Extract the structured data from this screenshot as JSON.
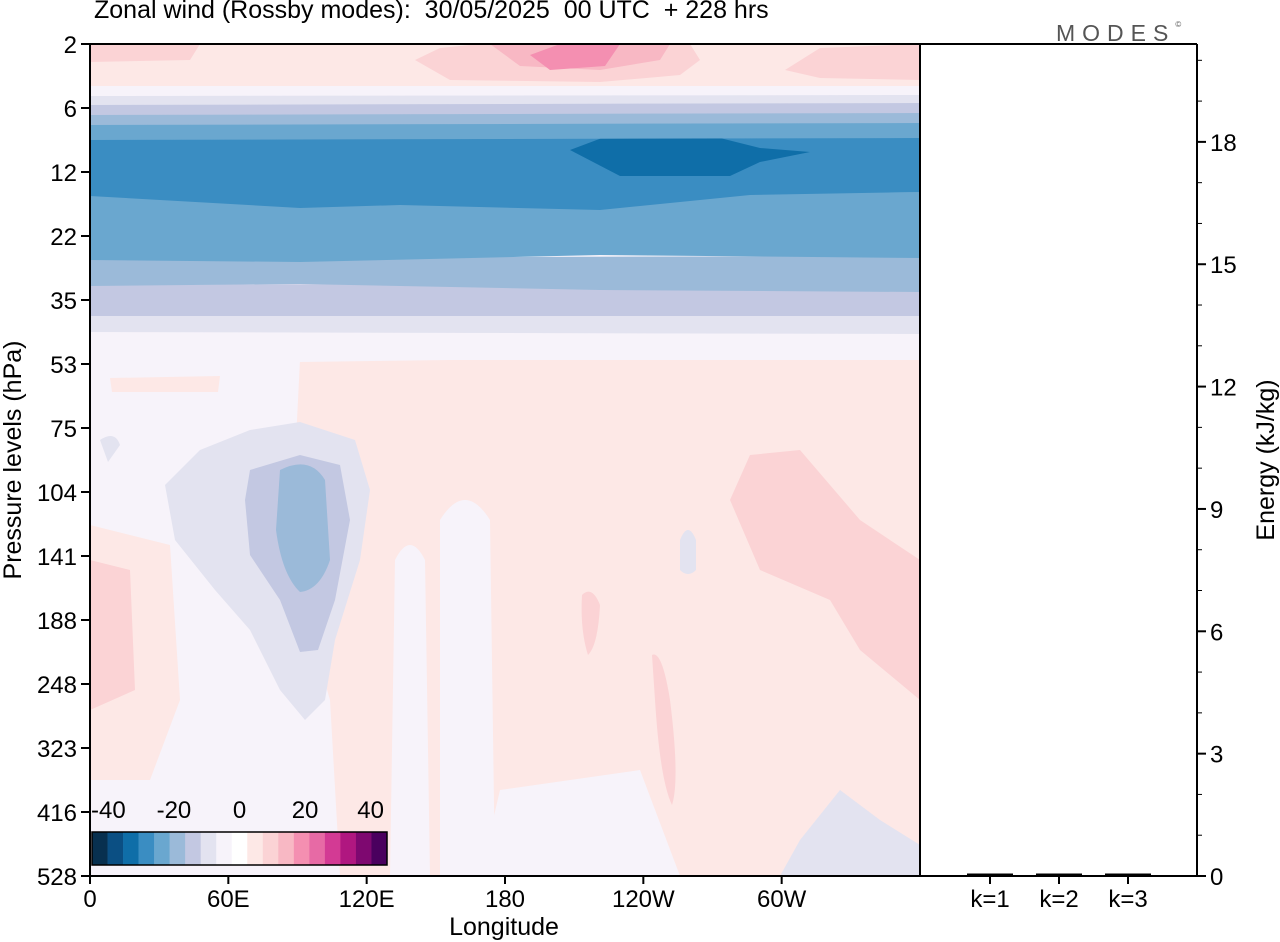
{
  "title": "Zonal wind (Rossby modes):  30/05/2025  00 UTC  + 228 hrs",
  "logo": "MODES",
  "logo_mark": "©",
  "chart_data": [
    {
      "type": "heatmap",
      "title": "Zonal wind (Rossby modes):  30/05/2025  00 UTC  + 228 hrs",
      "xlabel": "Longitude",
      "ylabel": "Pressure levels (hPa)",
      "x_ticks": [
        "0",
        "60E",
        "120E",
        "180",
        "120W",
        "60W"
      ],
      "x_tick_degrees": [
        0,
        60,
        120,
        180,
        240,
        300
      ],
      "x_range_degrees": [
        0,
        360
      ],
      "y_ticks": [
        "2",
        "6",
        "12",
        "22",
        "35",
        "53",
        "75",
        "104",
        "141",
        "188",
        "248",
        "323",
        "416",
        "528"
      ],
      "y_scale": "model levels, top to bottom",
      "colorbar": {
        "tick_labels": [
          "-40",
          "-20",
          "0",
          "20",
          "40"
        ],
        "range": [
          -45,
          45
        ],
        "bins": [
          -45,
          -40,
          -35,
          -30,
          -25,
          -20,
          -15,
          -10,
          -5,
          0,
          5,
          10,
          15,
          20,
          25,
          30,
          35,
          40,
          45
        ],
        "colors": [
          "#08304f",
          "#0b4f83",
          "#0f6ea8",
          "#3a8dc2",
          "#6aa7cf",
          "#9bbad9",
          "#c3c8e2",
          "#e3e3f0",
          "#f7f3fa",
          "#ffffff",
          "#fde8e6",
          "#fbd3d5",
          "#f8b8c4",
          "#f48fb1",
          "#e76aa5",
          "#d33a94",
          "#b01780",
          "#7e0870",
          "#4a005e"
        ]
      },
      "layers": [
        {
          "levels": [
            "2",
            "6"
          ],
          "description_values": [
            5,
            15
          ]
        },
        {
          "levels": [
            "6",
            "12"
          ],
          "values_min": -35,
          "values_max": -5
        },
        {
          "levels": [
            "12",
            "22"
          ],
          "values_min": -25,
          "values_max": -20
        },
        {
          "levels": [
            "22",
            "53"
          ],
          "values_min": -15,
          "values_max": -5
        },
        {
          "levels": [
            "53",
            "528"
          ],
          "values_min": -20,
          "values_max": 10
        }
      ]
    },
    {
      "type": "bar",
      "categories": [
        "k=1",
        "k=2",
        "k=3"
      ],
      "values": [
        0.02,
        0.02,
        0.02
      ],
      "ylabel": "Energy (kJ/kg)",
      "ylim": [
        0,
        20.4
      ],
      "y_ticks": [
        0,
        3,
        6,
        9,
        12,
        15,
        18
      ]
    }
  ]
}
